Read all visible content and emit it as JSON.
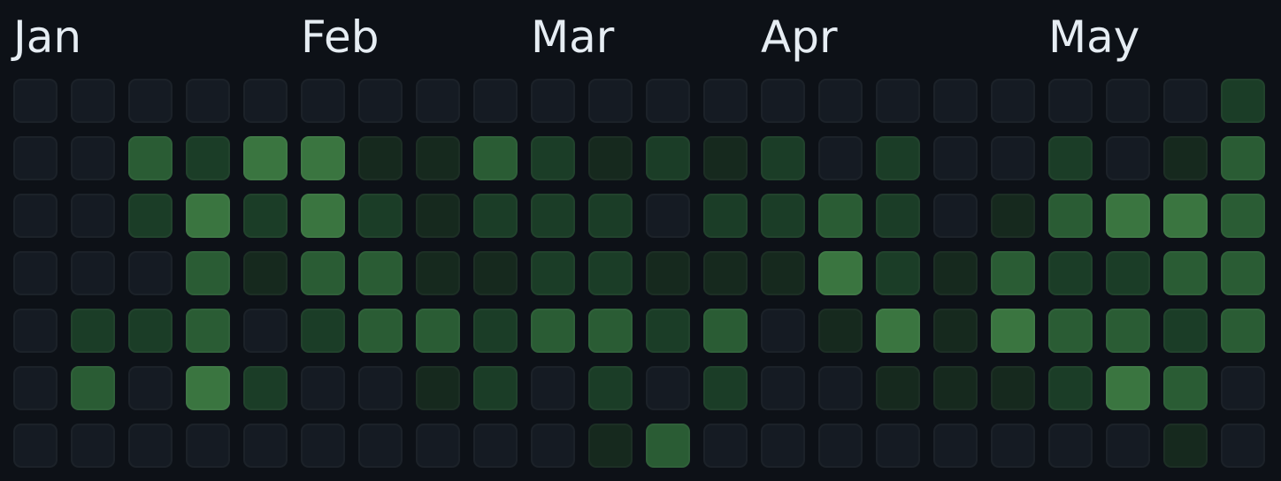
{
  "months": [
    "Jan",
    "Feb",
    "Mar",
    "Apr",
    "May"
  ],
  "month_start_week": [
    0,
    5,
    9,
    13,
    18
  ],
  "level_colors": [
    "#151b23",
    "#16291e",
    "#1b3d27",
    "#2a5c34",
    "#3a7540"
  ],
  "weeks": [
    [
      0,
      0,
      0,
      0,
      0,
      0,
      0
    ],
    [
      0,
      0,
      0,
      0,
      2,
      3,
      0
    ],
    [
      0,
      3,
      2,
      0,
      2,
      0,
      0
    ],
    [
      0,
      2,
      4,
      3,
      3,
      4,
      0
    ],
    [
      0,
      4,
      2,
      1,
      0,
      2,
      0
    ],
    [
      0,
      4,
      4,
      3,
      2,
      0,
      0
    ],
    [
      0,
      1,
      2,
      3,
      3,
      0,
      0
    ],
    [
      0,
      1,
      1,
      1,
      3,
      1,
      0
    ],
    [
      0,
      3,
      2,
      1,
      2,
      2,
      0
    ],
    [
      0,
      2,
      2,
      2,
      3,
      0,
      0
    ],
    [
      0,
      1,
      2,
      2,
      3,
      2,
      1
    ],
    [
      0,
      2,
      0,
      1,
      2,
      0,
      3
    ],
    [
      0,
      1,
      2,
      1,
      3,
      2,
      0
    ],
    [
      0,
      2,
      2,
      1,
      0,
      0,
      0
    ],
    [
      0,
      0,
      3,
      4,
      1,
      0,
      0
    ],
    [
      0,
      2,
      2,
      2,
      4,
      1,
      0
    ],
    [
      0,
      0,
      0,
      1,
      1,
      1,
      0
    ],
    [
      0,
      0,
      1,
      3,
      4,
      1,
      0
    ],
    [
      0,
      2,
      3,
      2,
      3,
      2,
      0
    ],
    [
      0,
      0,
      4,
      2,
      3,
      4,
      0
    ],
    [
      0,
      1,
      4,
      3,
      2,
      3,
      1
    ],
    [
      2,
      3,
      3,
      3,
      3,
      0,
      0
    ]
  ]
}
